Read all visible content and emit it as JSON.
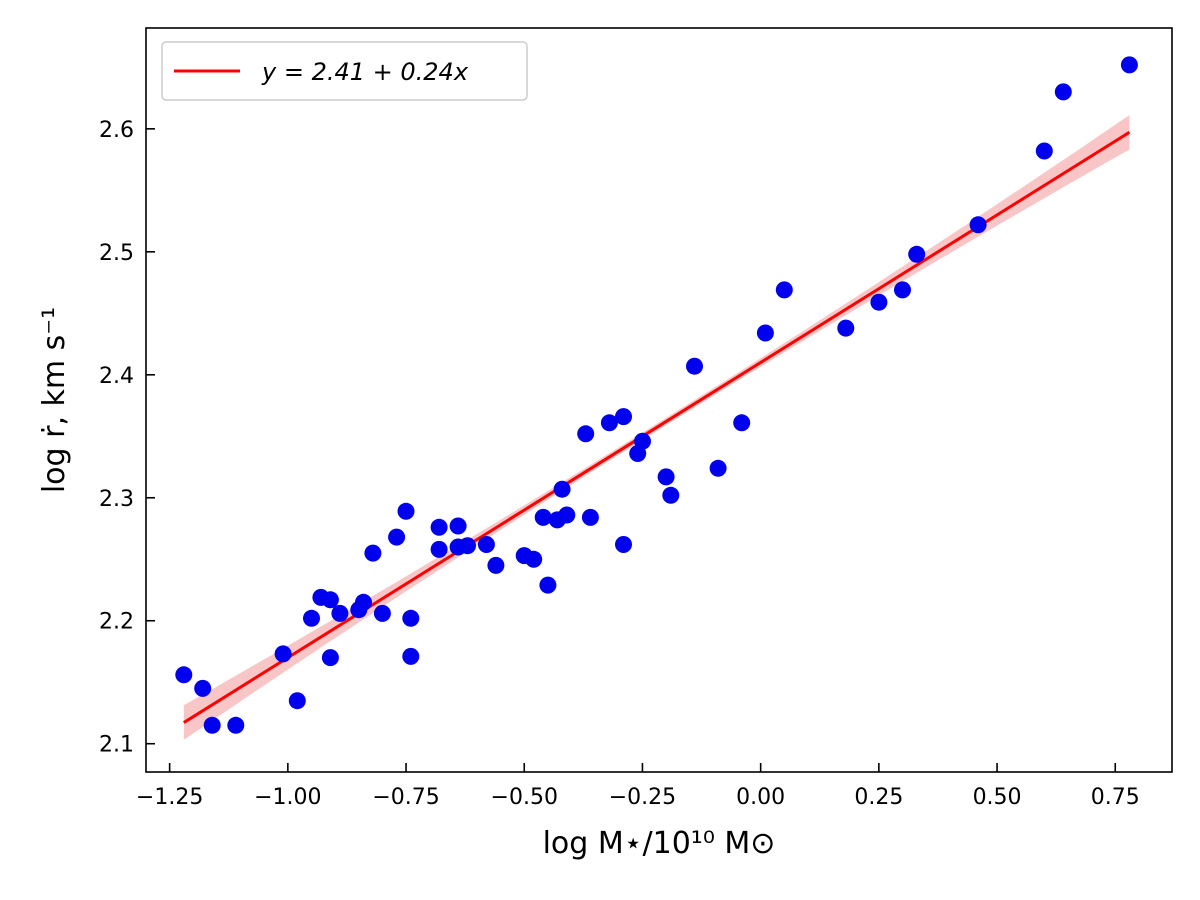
{
  "chart_data": {
    "type": "scatter",
    "xlabel": "log M⋆/10¹⁰ M⊙",
    "ylabel": "log ṙ,  km s⁻¹",
    "xlim": [
      -1.3,
      0.87
    ],
    "ylim": [
      2.077,
      2.682
    ],
    "x_ticks": [
      -1.25,
      -1.0,
      -0.75,
      -0.5,
      -0.25,
      0.0,
      0.25,
      0.5,
      0.75
    ],
    "x_tick_labels": [
      "−1.25",
      "−1.00",
      "−0.75",
      "−0.50",
      "−0.25",
      "0.00",
      "0.25",
      "0.50",
      "0.75"
    ],
    "y_ticks": [
      2.1,
      2.2,
      2.3,
      2.4,
      2.5,
      2.6
    ],
    "y_tick_labels": [
      "2.1",
      "2.2",
      "2.3",
      "2.4",
      "2.5",
      "2.6"
    ],
    "grid": false,
    "legend": {
      "position": "top-left",
      "entries": [
        {
          "label": "y = 2.41 + 0.24x",
          "color": "#ff0000"
        }
      ]
    },
    "fit": {
      "intercept": 2.41,
      "slope": 0.24,
      "x_range": [
        -1.22,
        0.78
      ],
      "band_halfwidth_at_ends": 0.014,
      "band_halfwidth_at_center": 0.003,
      "color": "#ff0000",
      "band_color": "#f4a0a0"
    },
    "points_color": "#0000ee",
    "points": [
      [
        -1.22,
        2.156
      ],
      [
        -1.18,
        2.145
      ],
      [
        -1.16,
        2.115
      ],
      [
        -1.11,
        2.115
      ],
      [
        -1.01,
        2.173
      ],
      [
        -0.98,
        2.135
      ],
      [
        -0.95,
        2.202
      ],
      [
        -0.93,
        2.219
      ],
      [
        -0.91,
        2.217
      ],
      [
        -0.89,
        2.206
      ],
      [
        -0.91,
        2.17
      ],
      [
        -0.85,
        2.209
      ],
      [
        -0.84,
        2.215
      ],
      [
        -0.82,
        2.255
      ],
      [
        -0.8,
        2.206
      ],
      [
        -0.77,
        2.268
      ],
      [
        -0.75,
        2.289
      ],
      [
        -0.74,
        2.202
      ],
      [
        -0.74,
        2.171
      ],
      [
        -0.68,
        2.276
      ],
      [
        -0.68,
        2.258
      ],
      [
        -0.64,
        2.277
      ],
      [
        -0.64,
        2.26
      ],
      [
        -0.62,
        2.261
      ],
      [
        -0.58,
        2.262
      ],
      [
        -0.56,
        2.245
      ],
      [
        -0.5,
        2.253
      ],
      [
        -0.48,
        2.25
      ],
      [
        -0.46,
        2.284
      ],
      [
        -0.45,
        2.229
      ],
      [
        -0.43,
        2.282
      ],
      [
        -0.42,
        2.307
      ],
      [
        -0.41,
        2.286
      ],
      [
        -0.37,
        2.352
      ],
      [
        -0.36,
        2.284
      ],
      [
        -0.32,
        2.361
      ],
      [
        -0.29,
        2.366
      ],
      [
        -0.29,
        2.262
      ],
      [
        -0.26,
        2.336
      ],
      [
        -0.25,
        2.346
      ],
      [
        -0.2,
        2.317
      ],
      [
        -0.19,
        2.302
      ],
      [
        -0.14,
        2.407
      ],
      [
        -0.09,
        2.324
      ],
      [
        -0.04,
        2.361
      ],
      [
        0.01,
        2.434
      ],
      [
        0.05,
        2.469
      ],
      [
        0.18,
        2.438
      ],
      [
        0.25,
        2.459
      ],
      [
        0.3,
        2.469
      ],
      [
        0.33,
        2.498
      ],
      [
        0.46,
        2.522
      ],
      [
        0.6,
        2.582
      ],
      [
        0.64,
        2.63
      ],
      [
        0.78,
        2.652
      ]
    ]
  }
}
